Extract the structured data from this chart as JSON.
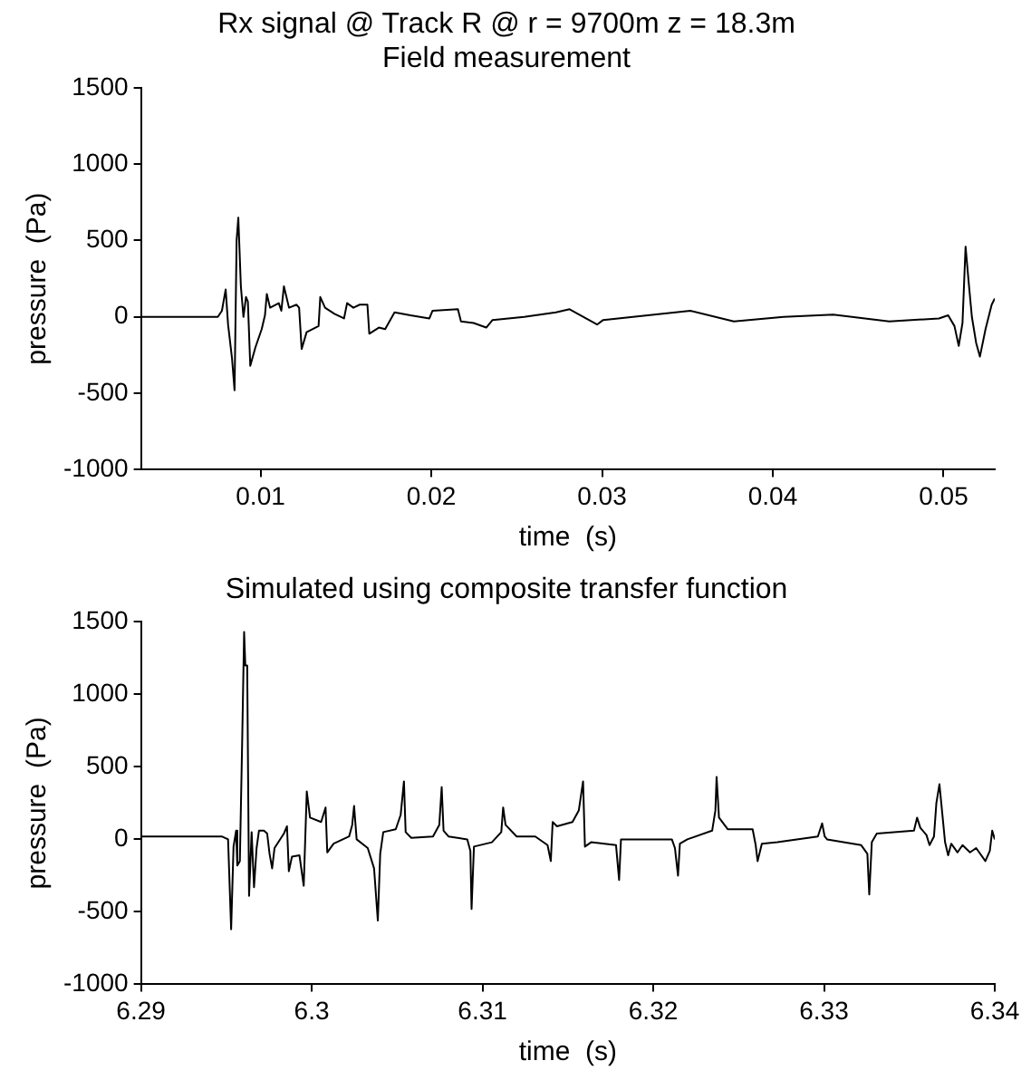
{
  "chart_data": [
    {
      "type": "line",
      "title": "Rx signal @ Track R @ r = 9700m z = 18.3m",
      "subtitle": "Field measurement",
      "xlabel": "time  (s)",
      "ylabel": "pressure  (Pa)",
      "color": "#000000",
      "marker": "none",
      "line_style": "solid",
      "xlim": [
        0.003,
        0.053
      ],
      "xticks": [
        0.01,
        0.02,
        0.03,
        0.04,
        0.05
      ],
      "ylim": [
        -1000,
        1500
      ],
      "yticks": [
        -1000,
        -500,
        0,
        500,
        1000,
        1500
      ],
      "x": [
        0.003,
        0.0058,
        0.0075,
        0.00774,
        0.00796,
        0.0081,
        0.00833,
        0.00848,
        0.0086,
        0.0087,
        0.00885,
        0.009,
        0.00915,
        0.00926,
        0.0094,
        0.0097,
        0.01007,
        0.01026,
        0.01037,
        0.01056,
        0.01107,
        0.01122,
        0.01137,
        0.01167,
        0.01211,
        0.01226,
        0.01241,
        0.0127,
        0.0134,
        0.0135,
        0.01378,
        0.01433,
        0.01489,
        0.01507,
        0.01544,
        0.01581,
        0.01626,
        0.01637,
        0.01693,
        0.0173,
        0.01785,
        0.01878,
        0.01989,
        0.02007,
        0.02156,
        0.02174,
        0.02248,
        0.02322,
        0.02359,
        0.02544,
        0.0273,
        0.0281,
        0.02971,
        0.03007,
        0.03517,
        0.03772,
        0.04063,
        0.04354,
        0.04682,
        0.04973,
        0.05027,
        0.05064,
        0.05089,
        0.05111,
        0.05129,
        0.05147,
        0.05166,
        0.05191,
        0.05213,
        0.05246,
        0.05282,
        0.053
      ],
      "values": [
        0,
        0,
        0,
        40,
        180,
        -50,
        -270,
        -480,
        500,
        650,
        200,
        0,
        130,
        100,
        -320,
        -200,
        -80,
        10,
        150,
        60,
        90,
        40,
        200,
        60,
        80,
        60,
        -210,
        -100,
        -60,
        130,
        60,
        20,
        -10,
        90,
        60,
        80,
        80,
        -110,
        -70,
        -80,
        30,
        10,
        -10,
        40,
        50,
        -30,
        -40,
        -70,
        -20,
        0,
        30,
        50,
        -50,
        -20,
        40,
        -30,
        0,
        15,
        -30,
        -10,
        10,
        -60,
        -190,
        -40,
        460,
        230,
        0,
        -170,
        -260,
        -80,
        80,
        120
      ]
    },
    {
      "type": "line",
      "title": "Simulated using composite transfer function",
      "xlabel": "time  (s)",
      "ylabel": "pressure  (Pa)",
      "color": "#000000",
      "marker": "none",
      "line_style": "solid",
      "xlim": [
        6.29,
        6.34
      ],
      "xticks": [
        6.29,
        6.3,
        6.31,
        6.32,
        6.33,
        6.34
      ],
      "ylim": [
        -1000,
        1500
      ],
      "yticks": [
        -1000,
        -500,
        0,
        500,
        1000,
        1500
      ],
      "x": [
        6.29,
        6.29473,
        6.2951,
        6.29528,
        6.29542,
        6.29557,
        6.29564,
        6.29579,
        6.29593,
        6.29604,
        6.29611,
        6.29622,
        6.29633,
        6.29648,
        6.29662,
        6.29677,
        6.29691,
        6.2972,
        6.29739,
        6.29753,
        6.29768,
        6.29782,
        6.29837,
        6.29855,
        6.29866,
        6.29884,
        6.29928,
        6.29953,
        6.29971,
        6.2999,
        6.30055,
        6.30081,
        6.30091,
        6.30128,
        6.30219,
        6.30237,
        6.30248,
        6.30263,
        6.30328,
        6.30365,
        6.30387,
        6.30401,
        6.30419,
        6.30492,
        6.30521,
        6.3054,
        6.3055,
        6.30583,
        6.3071,
        6.30747,
        6.30761,
        6.30772,
        6.30801,
        6.30911,
        6.30929,
        6.30936,
        6.3095,
        6.31055,
        6.3111,
        6.31121,
        6.31135,
        6.312,
        6.31309,
        6.31381,
        6.314,
        6.31411,
        6.31436,
        6.31527,
        6.31564,
        6.31589,
        6.316,
        6.31636,
        6.31782,
        6.318,
        6.31811,
        6.32109,
        6.32127,
        6.32145,
        6.32156,
        6.322,
        6.32345,
        6.32364,
        6.32371,
        6.32385,
        6.32436,
        6.32582,
        6.326,
        6.32611,
        6.32636,
        6.32727,
        6.32964,
        6.32989,
        6.33004,
        6.33018,
        6.33218,
        6.33254,
        6.33265,
        6.3328,
        6.33309,
        6.33527,
        6.33545,
        6.33564,
        6.336,
        6.33618,
        6.33644,
        6.33658,
        6.33676,
        6.33695,
        6.33709,
        6.33727,
        6.33745,
        6.33782,
        6.33811,
        6.33855,
        6.33891,
        6.33945,
        6.33971,
        6.33985,
        6.34
      ],
      "values": [
        20,
        20,
        0,
        -620,
        -50,
        60,
        -180,
        -150,
        700,
        1430,
        1200,
        1200,
        -390,
        50,
        -330,
        -60,
        60,
        60,
        40,
        -100,
        -200,
        -60,
        40,
        90,
        -220,
        -120,
        -110,
        -320,
        330,
        150,
        120,
        220,
        -90,
        -30,
        20,
        100,
        230,
        0,
        -60,
        -200,
        -560,
        -100,
        50,
        70,
        170,
        400,
        50,
        10,
        20,
        100,
        360,
        60,
        20,
        0,
        -80,
        -480,
        -50,
        -20,
        50,
        220,
        100,
        20,
        20,
        -40,
        -150,
        120,
        90,
        120,
        200,
        400,
        -50,
        -20,
        -40,
        -280,
        0,
        0,
        -60,
        -250,
        -30,
        0,
        60,
        200,
        430,
        150,
        70,
        70,
        -40,
        -150,
        -30,
        -20,
        20,
        110,
        20,
        0,
        -40,
        -100,
        -380,
        -20,
        40,
        60,
        150,
        80,
        30,
        -40,
        20,
        250,
        380,
        150,
        -20,
        -110,
        -30,
        -90,
        -40,
        -90,
        -60,
        -150,
        -80,
        60,
        0
      ]
    }
  ]
}
